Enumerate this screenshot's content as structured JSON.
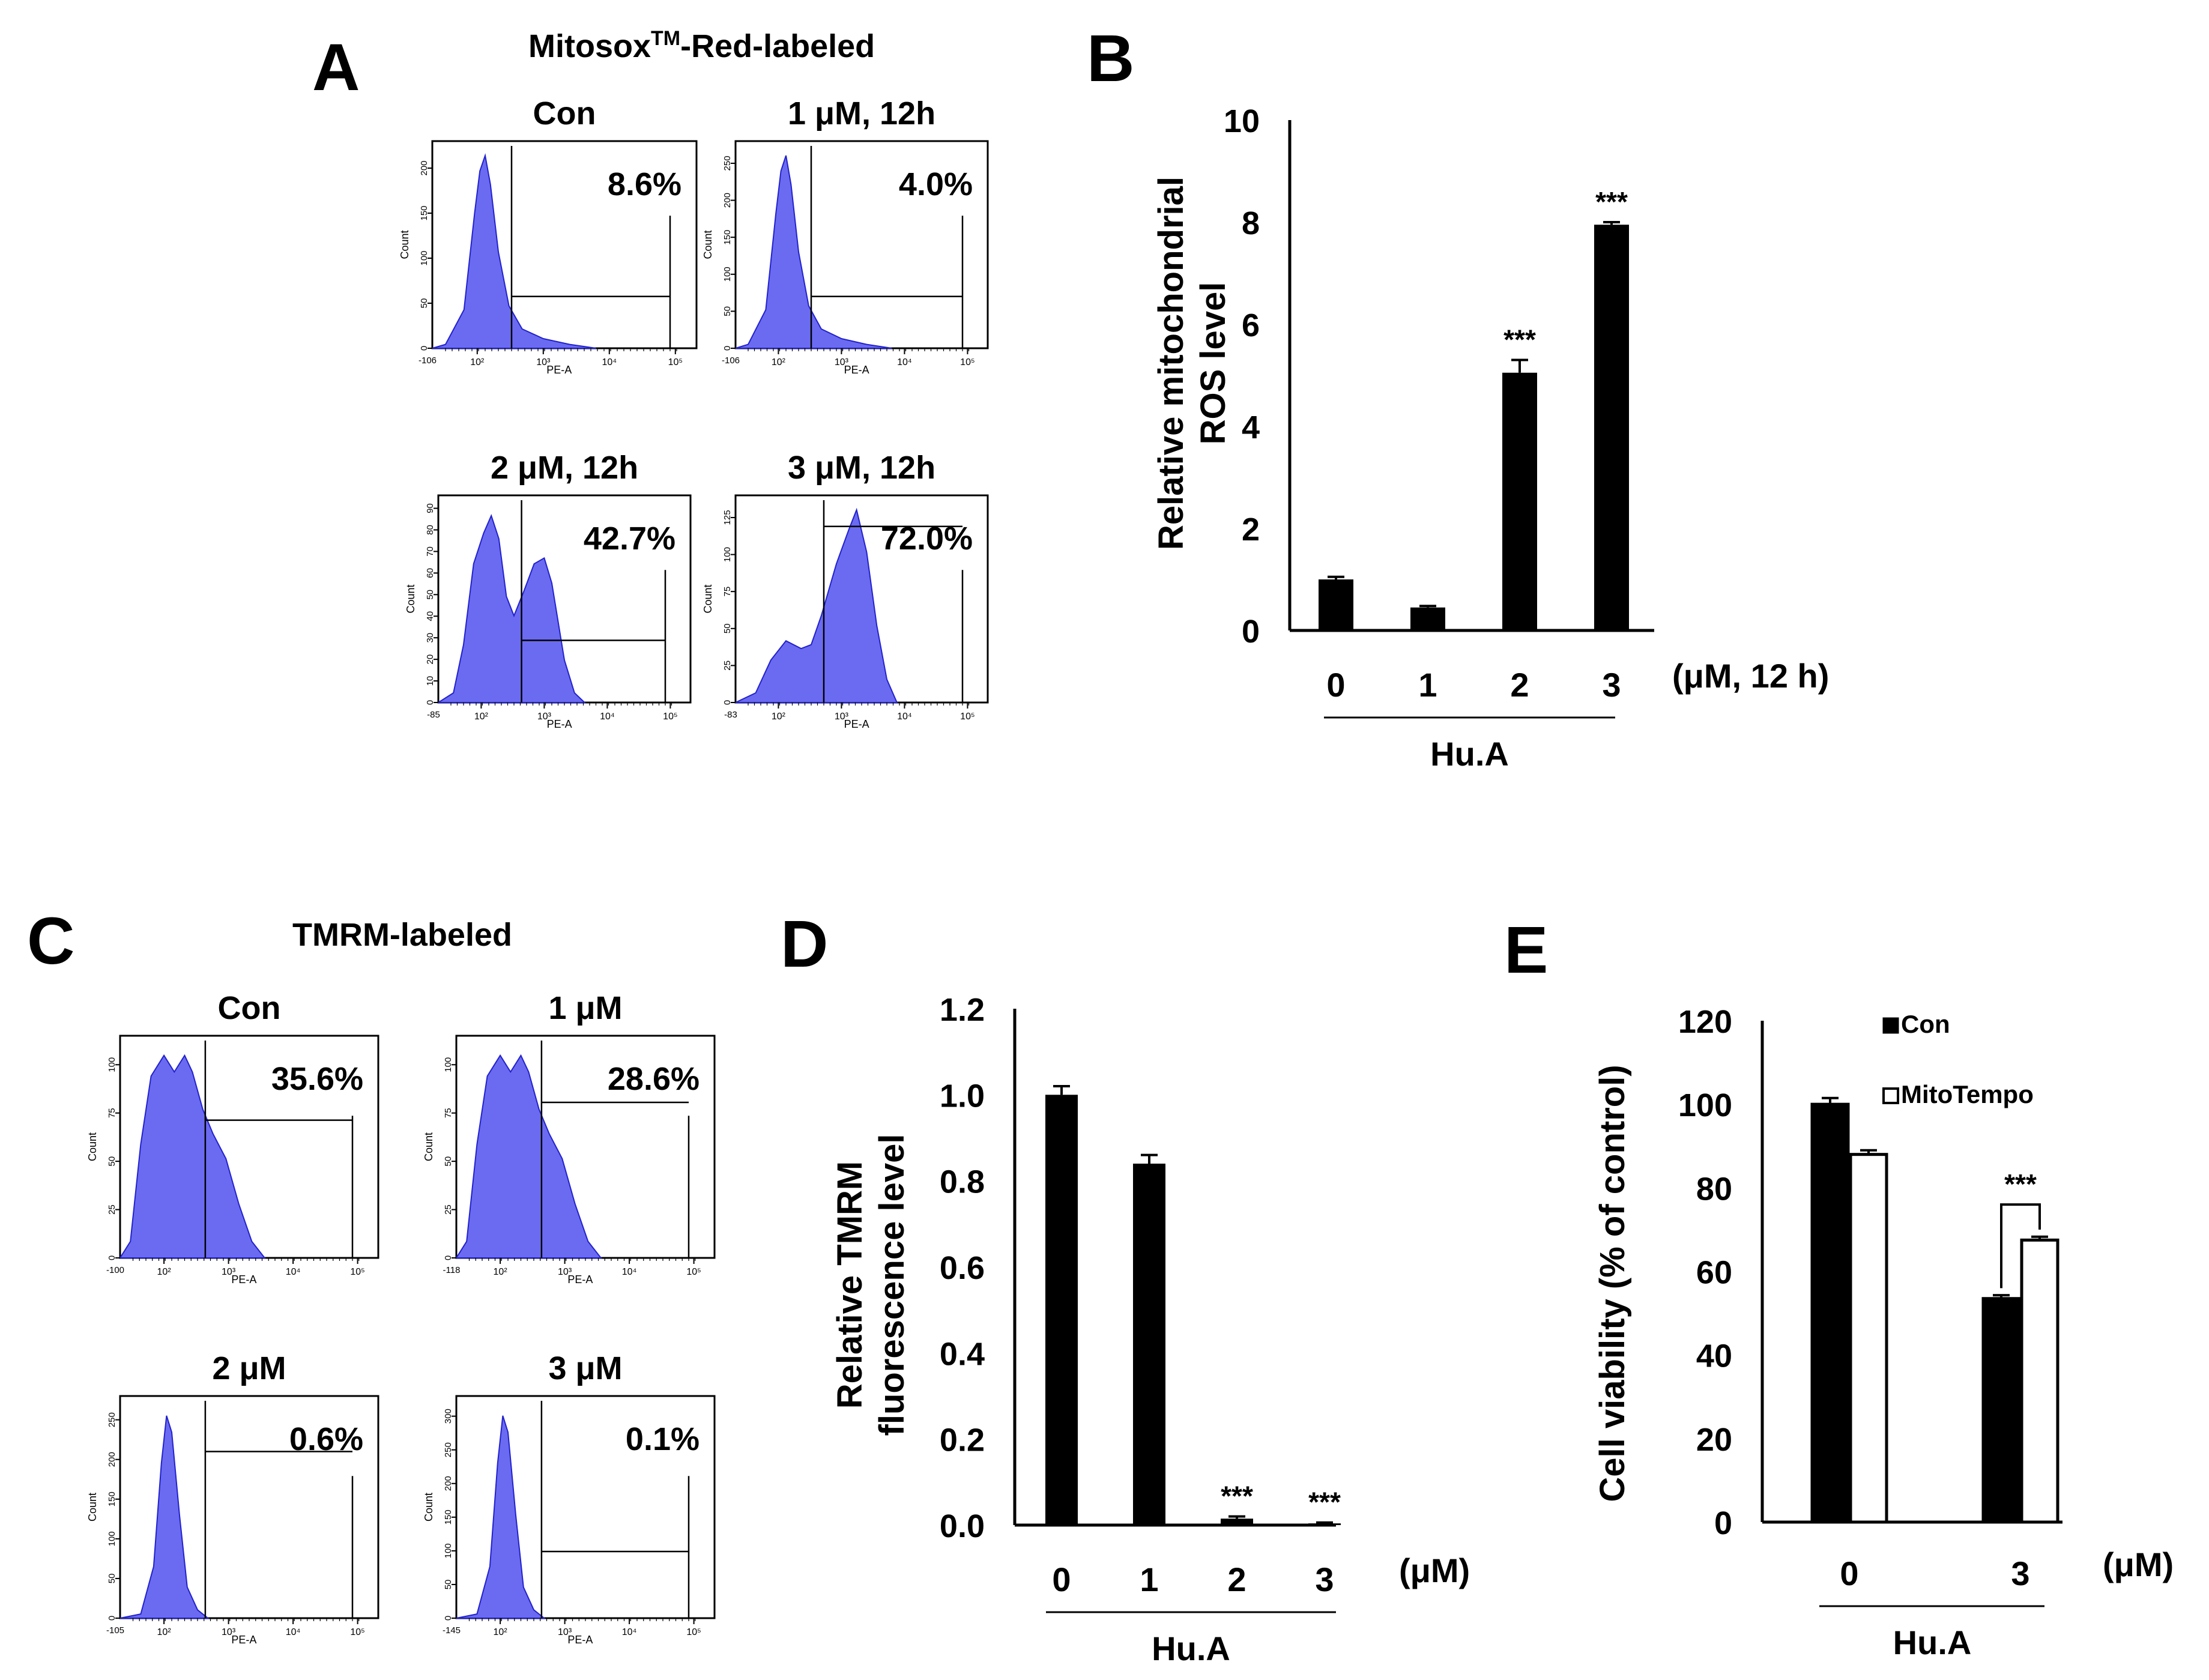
{
  "colors": {
    "histogram_fill": "#6b6bf2",
    "histogram_stroke": "#2222cc",
    "bar_black": "#000000",
    "bar_white": "#ffffff"
  },
  "panel_labels": {
    "A": "A",
    "B": "B",
    "C": "C",
    "D": "D",
    "E": "E"
  },
  "panel_a": {
    "title_main": "Mitosox",
    "title_sup": "TM",
    "title_rest": "-Red-labeled",
    "ylabel": "Count",
    "xlabel": "PE-A",
    "plots": [
      {
        "label": "Con",
        "percent": "8.6%",
        "xmin_tick": "-106",
        "yticks": [
          "0",
          "50",
          "100",
          "150",
          "200"
        ],
        "shape": "con"
      },
      {
        "label": "1 μM, 12h",
        "percent": "4.0%",
        "xmin_tick": "-106",
        "yticks": [
          "0",
          "50",
          "100",
          "150",
          "200",
          "250"
        ],
        "shape": "con"
      },
      {
        "label": "2 μM, 12h",
        "percent": "42.7%",
        "xmin_tick": "-85",
        "yticks": [
          "0",
          "10",
          "20",
          "30",
          "40",
          "50",
          "60",
          "70",
          "80",
          "90"
        ],
        "shape": "double"
      },
      {
        "label": "3 μM, 12h",
        "percent": "72.0%",
        "xmin_tick": "-83",
        "yticks": [
          "0",
          "25",
          "50",
          "75",
          "100",
          "125"
        ],
        "shape": "right"
      }
    ],
    "xticks": [
      "10²",
      "10³",
      "10⁴",
      "10⁵"
    ]
  },
  "panel_c": {
    "title": "TMRM-labeled",
    "ylabel": "Count",
    "xlabel": "PE-A",
    "plots": [
      {
        "label": "Con",
        "percent": "35.6%",
        "xmin_tick": "-100",
        "yticks": [
          "0",
          "25",
          "50",
          "75",
          "100"
        ],
        "shape": "wide"
      },
      {
        "label": "1 μM",
        "percent": "28.6%",
        "xmin_tick": "-118",
        "yticks": [
          "0",
          "25",
          "50",
          "75",
          "100"
        ],
        "shape": "wide"
      },
      {
        "label": "2 μM",
        "percent": "0.6%",
        "xmin_tick": "-105",
        "yticks": [
          "0",
          "50",
          "100",
          "150",
          "200",
          "250"
        ],
        "shape": "narrow"
      },
      {
        "label": "3 μM",
        "percent": "0.1%",
        "xmin_tick": "-145",
        "yticks": [
          "0",
          "50",
          "100",
          "150",
          "200",
          "250",
          "300"
        ],
        "shape": "narrow"
      }
    ],
    "xticks": [
      "10²",
      "10³",
      "10⁴",
      "10⁵"
    ]
  },
  "chart_data": [
    {
      "panel": "B",
      "type": "bar",
      "categories": [
        "0",
        "1",
        "2",
        "3"
      ],
      "values": [
        1.0,
        0.45,
        5.05,
        7.95
      ],
      "errors": [
        0.05,
        0.03,
        0.25,
        0.05
      ],
      "significance": [
        "",
        "",
        "***",
        "***"
      ],
      "ylabel_line1": "Relative mitochondrial",
      "ylabel_line2": "ROS level",
      "yticks": [
        "0",
        "2",
        "4",
        "6",
        "8",
        "10"
      ],
      "ylim": [
        0,
        10
      ],
      "unit_label": "(μM, 12 h)",
      "group_label": "Hu.A"
    },
    {
      "panel": "D",
      "type": "bar",
      "categories": [
        "0",
        "1",
        "2",
        "3"
      ],
      "values": [
        1.0,
        0.84,
        0.015,
        0.004
      ],
      "errors": [
        0.02,
        0.02,
        0.005,
        0.002
      ],
      "significance": [
        "",
        "",
        "***",
        "***"
      ],
      "ylabel_line1": "Relative TMRM",
      "ylabel_line2": "fluorescence level",
      "yticks": [
        "0.0",
        "0.2",
        "0.4",
        "0.6",
        "0.8",
        "1.0",
        "1.2"
      ],
      "ylim": [
        0,
        1.2
      ],
      "unit_label": "(μM)",
      "group_label": "Hu.A"
    },
    {
      "panel": "E",
      "type": "bar",
      "categories": [
        "0",
        "3"
      ],
      "series": [
        {
          "name": "Con",
          "values": [
            100,
            53.5
          ],
          "errors": [
            1.5,
            0.8
          ]
        },
        {
          "name": "MitoTempo",
          "values": [
            88,
            67.5
          ],
          "errors": [
            1.0,
            0.8
          ]
        }
      ],
      "significance": "***",
      "ylabel": "Cell viability (% of control)",
      "yticks": [
        "0",
        "20",
        "40",
        "60",
        "80",
        "100",
        "120"
      ],
      "ylim": [
        0,
        120
      ],
      "unit_label": "(μM)",
      "group_label": "Hu.A"
    }
  ]
}
